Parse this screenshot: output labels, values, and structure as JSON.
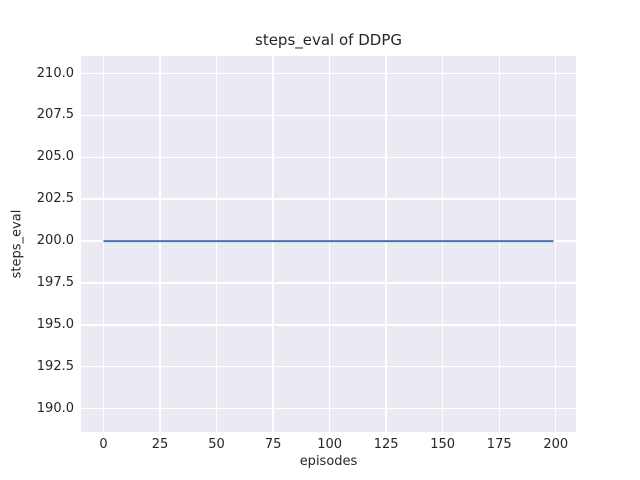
{
  "chart_data": {
    "type": "line",
    "title": "steps_eval of DDPG",
    "xlabel": "episodes",
    "ylabel": "steps_eval",
    "xlim": [
      -9.95,
      208.95
    ],
    "ylim": [
      188.6,
      211.05
    ],
    "xticks": [
      0,
      25,
      50,
      75,
      100,
      125,
      150,
      175,
      200
    ],
    "xtick_labels": [
      "0",
      "25",
      "50",
      "75",
      "100",
      "125",
      "150",
      "175",
      "200"
    ],
    "yticks": [
      190.0,
      192.5,
      195.0,
      197.5,
      200.0,
      202.5,
      205.0,
      207.5,
      210.0
    ],
    "ytick_labels": [
      "190.0",
      "192.5",
      "195.0",
      "197.5",
      "200.0",
      "202.5",
      "205.0",
      "207.5",
      "210.0"
    ],
    "grid": true,
    "legend": false,
    "series": [
      {
        "name": "steps_eval",
        "color": "#4c72b0",
        "x": [
          0,
          199
        ],
        "y": [
          200,
          200
        ]
      }
    ],
    "style": {
      "figure_bg": "#ffffff",
      "plot_bg": "#eaeaf2",
      "grid_color": "#ffffff",
      "text_color": "#262626",
      "accent": "#4c72b0"
    }
  }
}
